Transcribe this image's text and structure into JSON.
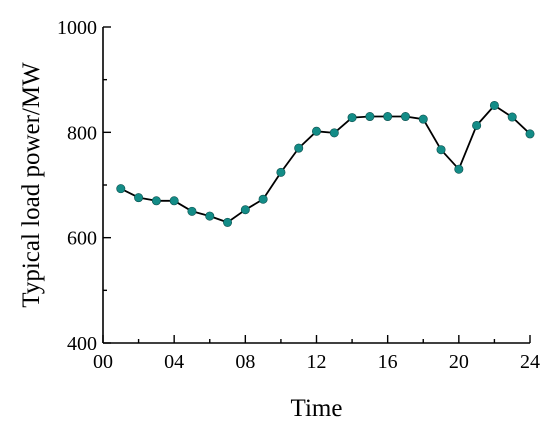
{
  "chart_data": {
    "type": "line",
    "title": "",
    "xlabel": "Time",
    "ylabel": "Typical load power/MW",
    "xlim": [
      0,
      24
    ],
    "ylim": [
      400,
      1000
    ],
    "x_ticks": [
      {
        "value": 0,
        "label": "00"
      },
      {
        "value": 4,
        "label": "04"
      },
      {
        "value": 8,
        "label": "08"
      },
      {
        "value": 12,
        "label": "12"
      },
      {
        "value": 16,
        "label": "16"
      },
      {
        "value": 20,
        "label": "20"
      },
      {
        "value": 24,
        "label": "24"
      }
    ],
    "y_ticks": [
      {
        "value": 400,
        "label": "400"
      },
      {
        "value": 600,
        "label": "600"
      },
      {
        "value": 800,
        "label": "800"
      },
      {
        "value": 1000,
        "label": "1000"
      }
    ],
    "grid": false,
    "legend": "none",
    "series": [
      {
        "line_color": "#000000",
        "marker_color": "#138c87",
        "x": [
          1,
          2,
          3,
          4,
          5,
          6,
          7,
          8,
          9,
          10,
          11,
          12,
          13,
          14,
          15,
          16,
          17,
          18,
          19,
          20,
          21,
          22,
          23,
          24
        ],
        "values": [
          693,
          676,
          670,
          670,
          650,
          641,
          629,
          653,
          673,
          724,
          770,
          802,
          799,
          828,
          830,
          830,
          830,
          825,
          767,
          730,
          813,
          851,
          829,
          797
        ]
      }
    ]
  }
}
